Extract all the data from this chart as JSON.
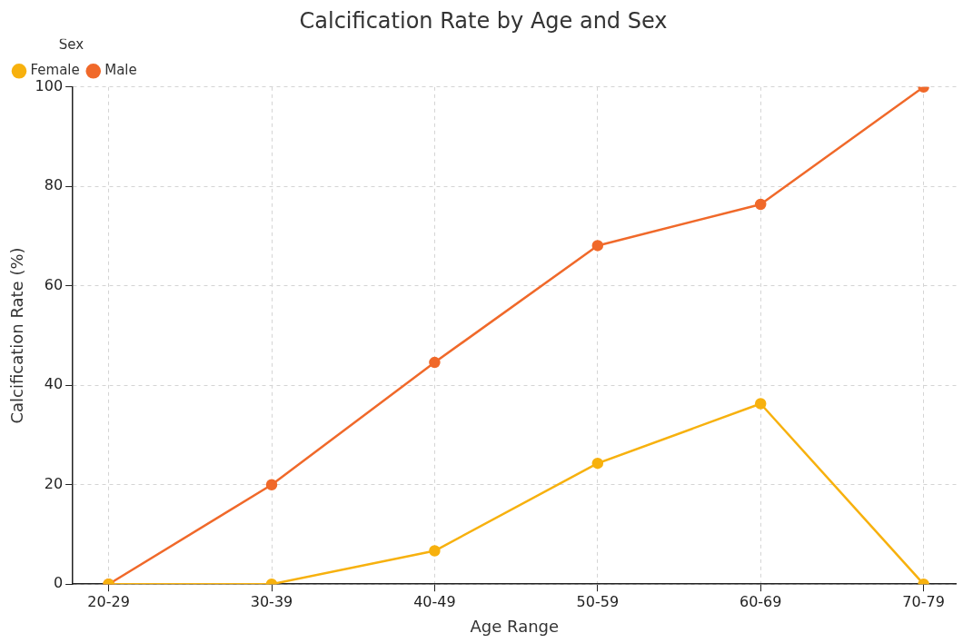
{
  "chart_data": {
    "type": "line",
    "title": "Calcification Rate by Age and Sex",
    "xlabel": "Age Range",
    "ylabel": "Calcification Rate (%)",
    "legend_title": "Sex",
    "categories": [
      "20-29",
      "30-39",
      "40-49",
      "50-59",
      "60-69",
      "70-79"
    ],
    "series": [
      {
        "name": "Female",
        "color": "#f7b10e",
        "values": [
          0,
          0,
          6.7,
          24.3,
          36.3,
          0
        ]
      },
      {
        "name": "Male",
        "color": "#f0692a",
        "values": [
          0,
          20,
          44.6,
          68.1,
          76.4,
          100
        ]
      }
    ],
    "ylim": [
      0,
      100
    ],
    "yticks": [
      0,
      20,
      40,
      60,
      80,
      100
    ],
    "grid": true,
    "legend": "top left",
    "marker": "circle",
    "line_style": "solid"
  }
}
